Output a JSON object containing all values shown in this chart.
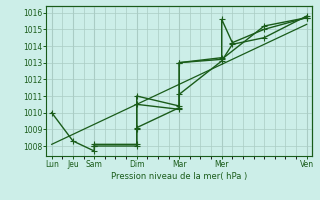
{
  "xlabel": "Pression niveau de la mer( hPa )",
  "background_color": "#cceee8",
  "grid_color": "#aaccc4",
  "line_color": "#1a5c1a",
  "ylim": [
    1007.4,
    1016.4
  ],
  "yticks": [
    1008,
    1009,
    1010,
    1011,
    1012,
    1013,
    1014,
    1015,
    1016
  ],
  "xtick_major_labels": [
    "Lun",
    "Jeu",
    "Sam",
    "Dim",
    "Mar",
    "Mer",
    "Ven"
  ],
  "xtick_major_positions": [
    0,
    2,
    4,
    8,
    12,
    16,
    24
  ],
  "minor_xtick_positions": [
    0,
    1,
    2,
    3,
    4,
    5,
    6,
    7,
    8,
    9,
    10,
    11,
    12,
    13,
    14,
    15,
    16,
    17,
    18,
    19,
    20,
    21,
    22,
    23,
    24
  ],
  "xlim": [
    -0.5,
    24.5
  ],
  "line1_x": [
    0,
    2,
    4,
    4,
    8,
    8,
    12,
    12,
    16,
    16,
    17,
    20,
    24
  ],
  "line1_y": [
    1010.0,
    1008.3,
    1007.7,
    1008.0,
    1008.0,
    1010.5,
    1010.2,
    1013.0,
    1013.3,
    1015.6,
    1014.2,
    1015.0,
    1015.7
  ],
  "line2_x": [
    4,
    4,
    8,
    8,
    12,
    12,
    16,
    20,
    24
  ],
  "line2_y": [
    1008.0,
    1008.1,
    1008.1,
    1011.0,
    1010.4,
    1013.0,
    1013.2,
    1015.2,
    1015.7
  ],
  "line3_x": [
    8,
    8,
    12,
    12,
    16,
    17,
    20,
    24
  ],
  "line3_y": [
    1009.0,
    1009.1,
    1010.3,
    1011.1,
    1013.1,
    1014.1,
    1014.5,
    1015.8
  ],
  "trend_x": [
    0,
    24
  ],
  "trend_y": [
    1008.1,
    1015.3
  ]
}
